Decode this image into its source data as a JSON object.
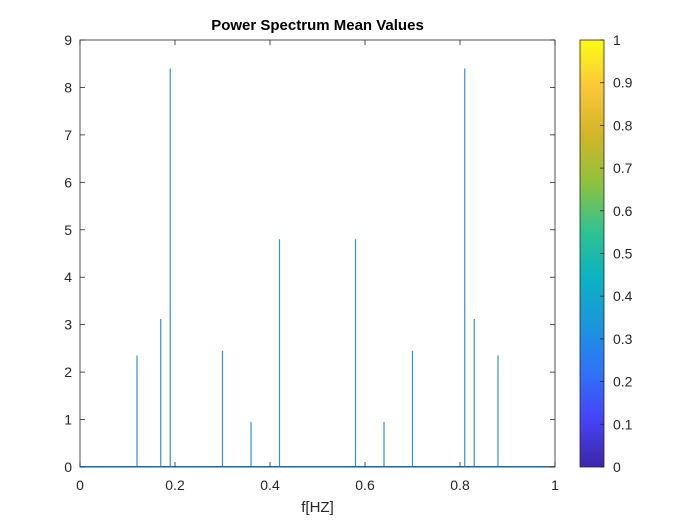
{
  "chart_data": {
    "type": "line",
    "title": "Power Spectrum Mean Values",
    "xlabel": "f[HZ]",
    "ylabel": "",
    "xlim": [
      0,
      1
    ],
    "ylim": [
      0,
      9
    ],
    "xticks": [
      "0",
      "0.2",
      "0.4",
      "0.6",
      "0.8",
      "1"
    ],
    "yticks": [
      "0",
      "1",
      "2",
      "3",
      "4",
      "5",
      "6",
      "7",
      "8",
      "9"
    ],
    "grid": false,
    "line_color": "#3a8fd0",
    "peaks": [
      {
        "x": 0.12,
        "y": 2.35
      },
      {
        "x": 0.17,
        "y": 3.12
      },
      {
        "x": 0.19,
        "y": 8.4
      },
      {
        "x": 0.3,
        "y": 2.45
      },
      {
        "x": 0.36,
        "y": 0.95
      },
      {
        "x": 0.42,
        "y": 4.8
      },
      {
        "x": 0.58,
        "y": 4.8
      },
      {
        "x": 0.64,
        "y": 0.95
      },
      {
        "x": 0.7,
        "y": 2.45
      },
      {
        "x": 0.81,
        "y": 8.4
      },
      {
        "x": 0.83,
        "y": 3.12
      },
      {
        "x": 0.88,
        "y": 2.35
      }
    ],
    "colorbar": {
      "limits": [
        0,
        1
      ],
      "ticks": [
        "0",
        "0.1",
        "0.2",
        "0.3",
        "0.4",
        "0.5",
        "0.6",
        "0.7",
        "0.8",
        "0.9",
        "1"
      ],
      "colormap": [
        "#3e26a8",
        "#4743f8",
        "#2f72f8",
        "#1b96dd",
        "#0bb2c0",
        "#31c28f",
        "#8fc23d",
        "#d2b528",
        "#fac73a",
        "#f9fb14"
      ]
    }
  }
}
